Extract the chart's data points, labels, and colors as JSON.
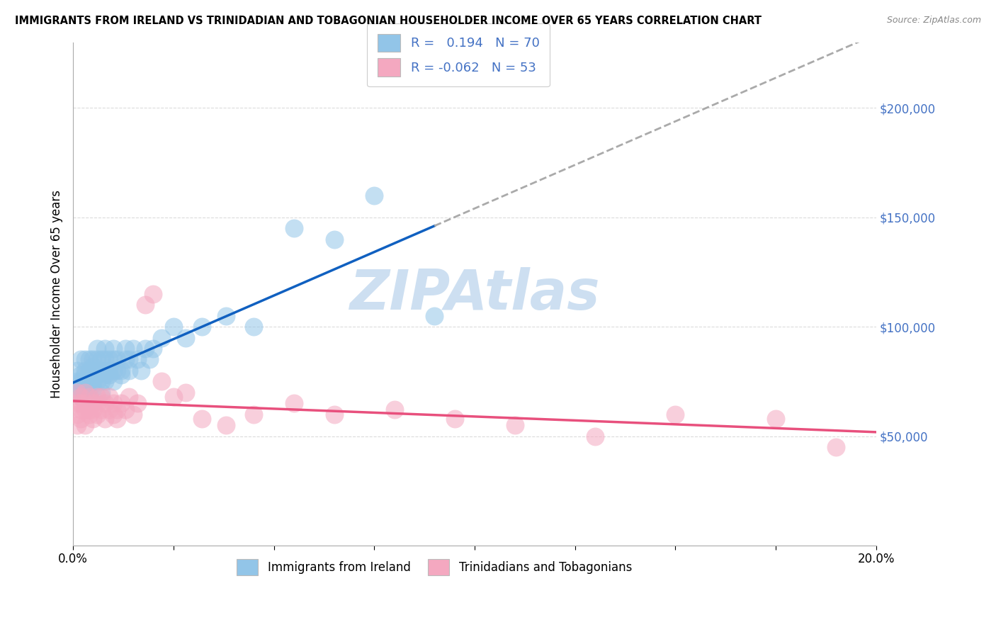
{
  "title": "IMMIGRANTS FROM IRELAND VS TRINIDADIAN AND TOBAGONIAN HOUSEHOLDER INCOME OVER 65 YEARS CORRELATION CHART",
  "source": "Source: ZipAtlas.com",
  "ylabel": "Householder Income Over 65 years",
  "xlim": [
    0.0,
    0.2
  ],
  "ylim": [
    0,
    230000
  ],
  "yticks": [
    50000,
    100000,
    150000,
    200000
  ],
  "ytick_labels": [
    "$50,000",
    "$100,000",
    "$150,000",
    "$200,000"
  ],
  "xticks": [
    0.0,
    0.025,
    0.05,
    0.075,
    0.1,
    0.125,
    0.15,
    0.175,
    0.2
  ],
  "xtick_labels": [
    "0.0%",
    "",
    "",
    "",
    "",
    "",
    "",
    "",
    "20.0%"
  ],
  "R_ireland": 0.194,
  "N_ireland": 70,
  "R_trini": -0.062,
  "N_trini": 53,
  "color_ireland": "#92C5E8",
  "color_trini": "#F4A8C0",
  "line_color_ireland": "#1060C0",
  "line_color_trini": "#E8507D",
  "line_color_dash": "#AAAAAA",
  "background_color": "#FFFFFF",
  "grid_color": "#CCCCCC",
  "watermark_color": "#C8DCF0",
  "title_color": "#000000",
  "source_color": "#888888",
  "tick_color": "#4472C4",
  "ireland_x": [
    0.001,
    0.001,
    0.001,
    0.002,
    0.002,
    0.002,
    0.002,
    0.002,
    0.003,
    0.003,
    0.003,
    0.003,
    0.003,
    0.004,
    0.004,
    0.004,
    0.004,
    0.004,
    0.004,
    0.005,
    0.005,
    0.005,
    0.005,
    0.005,
    0.005,
    0.006,
    0.006,
    0.006,
    0.006,
    0.006,
    0.007,
    0.007,
    0.007,
    0.007,
    0.008,
    0.008,
    0.008,
    0.008,
    0.008,
    0.009,
    0.009,
    0.009,
    0.01,
    0.01,
    0.01,
    0.01,
    0.011,
    0.011,
    0.012,
    0.012,
    0.013,
    0.013,
    0.014,
    0.014,
    0.015,
    0.016,
    0.017,
    0.018,
    0.019,
    0.02,
    0.022,
    0.025,
    0.028,
    0.032,
    0.038,
    0.045,
    0.055,
    0.065,
    0.075,
    0.09
  ],
  "ireland_y": [
    75000,
    80000,
    70000,
    85000,
    75000,
    78000,
    72000,
    68000,
    80000,
    75000,
    70000,
    85000,
    78000,
    80000,
    75000,
    85000,
    72000,
    78000,
    68000,
    80000,
    75000,
    85000,
    72000,
    78000,
    82000,
    80000,
    75000,
    85000,
    90000,
    78000,
    80000,
    75000,
    85000,
    70000,
    80000,
    85000,
    78000,
    90000,
    75000,
    80000,
    85000,
    78000,
    80000,
    85000,
    75000,
    90000,
    80000,
    85000,
    78000,
    80000,
    85000,
    90000,
    80000,
    85000,
    90000,
    85000,
    80000,
    90000,
    85000,
    90000,
    95000,
    100000,
    95000,
    100000,
    105000,
    100000,
    145000,
    140000,
    160000,
    105000
  ],
  "trini_x": [
    0.001,
    0.001,
    0.001,
    0.001,
    0.002,
    0.002,
    0.002,
    0.002,
    0.003,
    0.003,
    0.003,
    0.003,
    0.004,
    0.004,
    0.004,
    0.005,
    0.005,
    0.005,
    0.006,
    0.006,
    0.006,
    0.007,
    0.007,
    0.008,
    0.008,
    0.009,
    0.009,
    0.01,
    0.01,
    0.011,
    0.011,
    0.012,
    0.013,
    0.014,
    0.015,
    0.016,
    0.018,
    0.02,
    0.022,
    0.025,
    0.028,
    0.032,
    0.038,
    0.045,
    0.055,
    0.065,
    0.08,
    0.095,
    0.11,
    0.13,
    0.15,
    0.175,
    0.19
  ],
  "trini_y": [
    65000,
    70000,
    60000,
    55000,
    68000,
    62000,
    58000,
    65000,
    70000,
    62000,
    55000,
    65000,
    68000,
    60000,
    62000,
    65000,
    58000,
    62000,
    68000,
    60000,
    65000,
    62000,
    68000,
    58000,
    65000,
    62000,
    68000,
    60000,
    65000,
    62000,
    58000,
    65000,
    62000,
    68000,
    60000,
    65000,
    110000,
    115000,
    75000,
    68000,
    70000,
    58000,
    55000,
    60000,
    65000,
    60000,
    62000,
    58000,
    55000,
    50000,
    60000,
    58000,
    45000
  ]
}
